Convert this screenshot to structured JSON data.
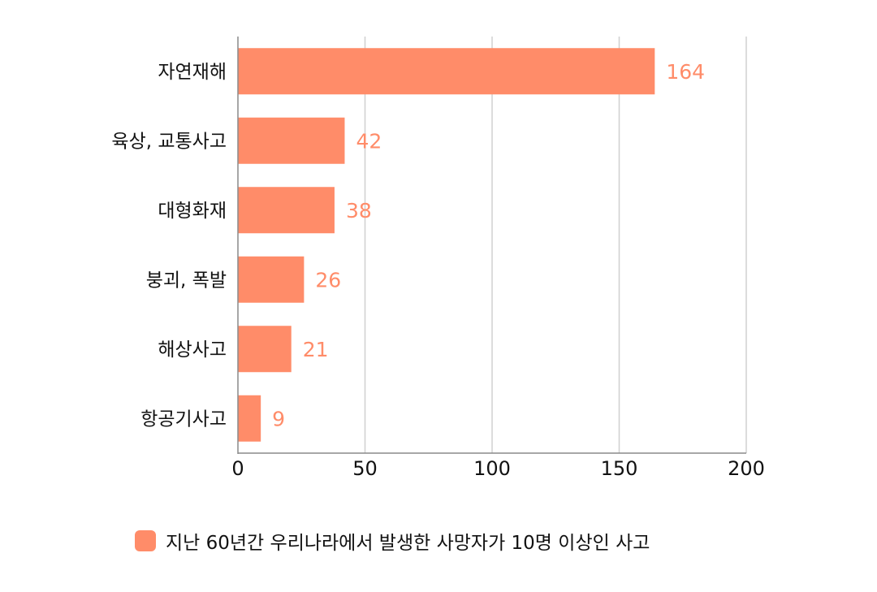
{
  "chart_data": {
    "type": "bar",
    "orientation": "horizontal",
    "categories": [
      "자연재해",
      "육상, 교통사고",
      "대형화재",
      "붕괴, 폭발",
      "해상사고",
      "항공기사고"
    ],
    "series": [
      {
        "name": "지난 60년간 우리나라에서 발생한 사망자가 10명 이상인 사고",
        "values": [
          164,
          42,
          38,
          26,
          21,
          9
        ],
        "color": "#ff8c69"
      }
    ],
    "xlim": [
      0,
      200
    ],
    "xticks": [
      "0",
      "50",
      "100",
      "150",
      "200"
    ],
    "grid": "vertical",
    "legend_position": "bottom-center",
    "title": "",
    "xlabel": "",
    "ylabel": ""
  },
  "colors": {
    "bar": "#ff8c69",
    "value_label": "#ff8c69",
    "grid": "#d0d0d0",
    "axis": "#8a8a8a"
  }
}
